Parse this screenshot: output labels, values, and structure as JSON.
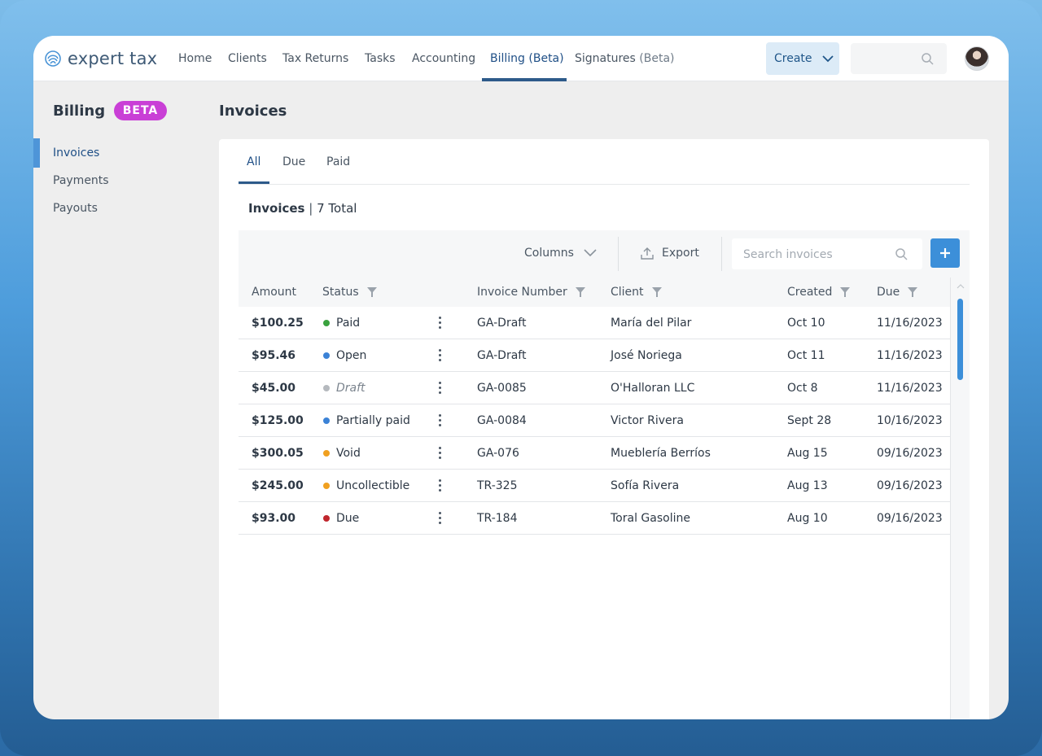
{
  "brand": {
    "name": "expert tax"
  },
  "topnav": {
    "items": [
      {
        "label": "Home",
        "suffix": ""
      },
      {
        "label": "Clients",
        "suffix": ""
      },
      {
        "label": "Tax Returns",
        "suffix": ""
      },
      {
        "label": "Tasks",
        "suffix": ""
      },
      {
        "label": "Accounting",
        "suffix": ""
      },
      {
        "label": "Billing",
        "suffix": "(Beta)"
      },
      {
        "label": "Signatures",
        "suffix": "(Beta)"
      }
    ],
    "active": "Billing",
    "create_label": "Create"
  },
  "sidebar": {
    "title": "Billing",
    "badge": "BETA",
    "items": [
      {
        "label": "Invoices"
      },
      {
        "label": "Payments"
      },
      {
        "label": "Payouts"
      }
    ],
    "active": "Invoices"
  },
  "main": {
    "title": "Invoices",
    "tabs": [
      {
        "label": "All"
      },
      {
        "label": "Due"
      },
      {
        "label": "Paid"
      }
    ],
    "active_tab": "All",
    "heading": {
      "label": "Invoices",
      "separator": "|",
      "total": "7 Total"
    },
    "toolbar": {
      "columns_label": "Columns",
      "export_label": "Export",
      "search_placeholder": "Search invoices"
    },
    "table": {
      "columns": [
        "Amount",
        "Status",
        "Invoice Number",
        "Client",
        "Created",
        "Due"
      ],
      "rows": [
        {
          "amount": "$100.25",
          "status": "Paid",
          "status_color": "#3aa23e",
          "invoice": "GA-Draft",
          "client": "María del Pilar",
          "created": "Oct 10",
          "due": "11/16/2023"
        },
        {
          "amount": "$95.46",
          "status": "Open",
          "status_color": "#3b82d6",
          "invoice": "GA-Draft",
          "client": "José Noriega",
          "created": "Oct 11",
          "due": "11/16/2023"
        },
        {
          "amount": "$45.00",
          "status": "Draft",
          "status_color": "#b5b9be",
          "invoice": "GA-0085",
          "client": "O'Halloran LLC",
          "created": "Oct 8",
          "due": "11/16/2023"
        },
        {
          "amount": "$125.00",
          "status": "Partially paid",
          "status_color": "#3b82d6",
          "invoice": "GA-0084",
          "client": "Victor Rivera",
          "created": "Sept 28",
          "due": "10/16/2023"
        },
        {
          "amount": "$300.05",
          "status": "Void",
          "status_color": "#f0a020",
          "invoice": "GA-076",
          "client": "Mueblería Berríos",
          "created": "Aug 15",
          "due": "09/16/2023"
        },
        {
          "amount": "$245.00",
          "status": "Uncollectible",
          "status_color": "#f0a020",
          "invoice": "TR-325",
          "client": "Sofía Rivera",
          "created": "Aug 13",
          "due": "09/16/2023"
        },
        {
          "amount": "$93.00",
          "status": "Due",
          "status_color": "#c0262d",
          "invoice": "TR-184",
          "client": "Toral Gasoline",
          "created": "Aug 10",
          "due": "09/16/2023"
        }
      ]
    }
  },
  "colors": {
    "accent": "#1f4f86",
    "primary_button": "#3c8fd9",
    "beta_badge": "#c93fd6"
  }
}
